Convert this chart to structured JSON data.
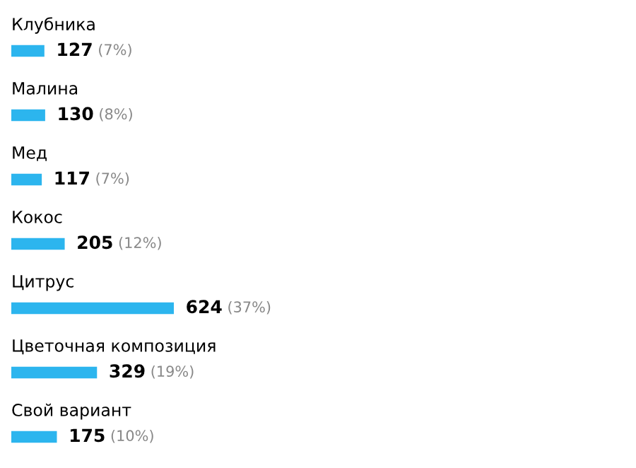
{
  "chart_data": {
    "type": "bar",
    "orientation": "horizontal",
    "categories": [
      "Клубника",
      "Малина",
      "Мед",
      "Кокос",
      "Цитрус",
      "Цветочная композиция",
      "Свой вариант"
    ],
    "values": [
      127,
      130,
      117,
      205,
      624,
      329,
      175
    ],
    "value_labels": [
      "127 (7%)",
      "130 (8%)",
      "117 (7%)",
      "205 (12%)",
      "624 (37%)",
      "329 (19%)",
      "175 (10%)"
    ],
    "color": "#2cb5ee"
  }
}
